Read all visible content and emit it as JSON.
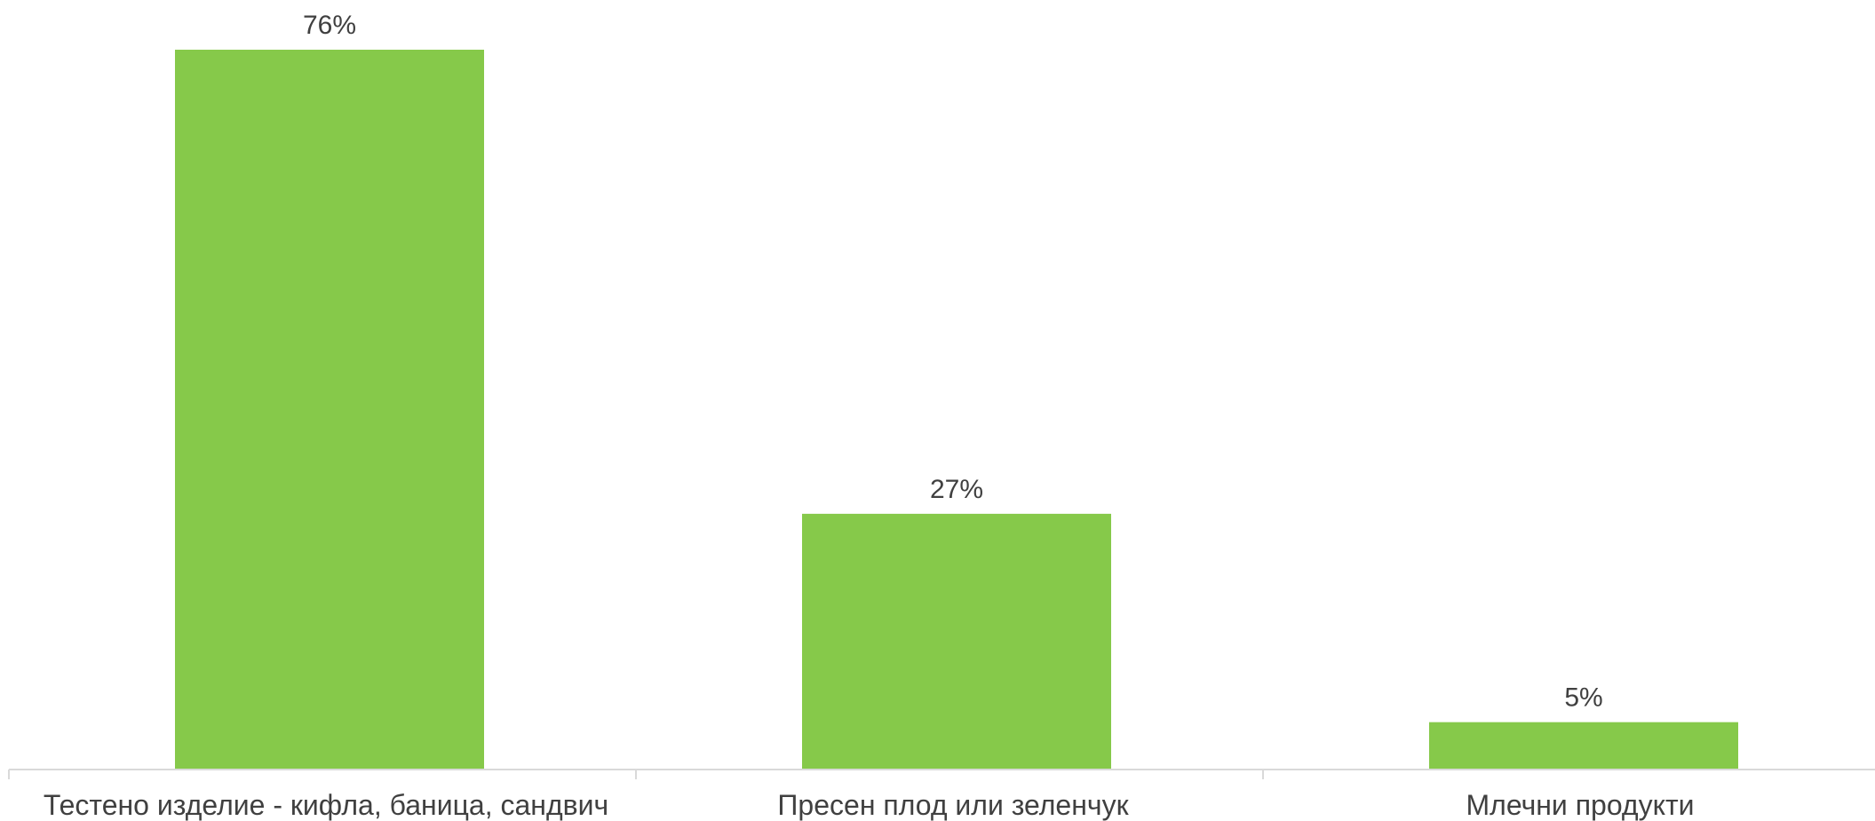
{
  "chart_data": {
    "type": "bar",
    "categories": [
      "Тестено изделие - кифла, баница, сандвич",
      "Пресен плод или зеленчук",
      "Млечни продукти"
    ],
    "values": [
      76,
      27,
      5
    ],
    "data_labels": [
      "76%",
      "27%",
      "5%"
    ],
    "unit": "%",
    "ylim": [
      0,
      76
    ],
    "grid": false,
    "legend": "none",
    "bar_color": "#86C94A",
    "axis_color": "#D9D9D9",
    "text_color": "#404040"
  }
}
